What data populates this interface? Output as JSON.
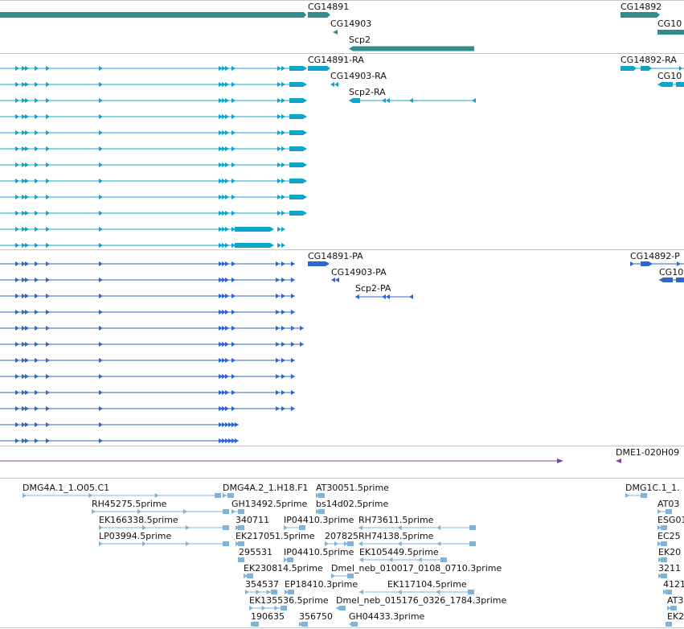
{
  "colors": {
    "gene": "#318c8c",
    "transcript": "#0ca5c9",
    "protein": "#2d66cf",
    "repeat": "#7b48a8",
    "est": "#7db4d8",
    "separator": "#c6c6c6"
  },
  "tracks": {
    "genes": {
      "labels": [
        "CG14891",
        "CG14903",
        "Scp2",
        "CG14892",
        "CG10"
      ]
    },
    "transcripts": {
      "labels": [
        "CG14891-RA",
        "CG14903-RA",
        "Scp2-RA",
        "CG14892-RA",
        "CG10"
      ]
    },
    "proteins": {
      "labels": [
        "CG14891-PA",
        "CG14903-PA",
        "Scp2-PA",
        "CG14892-P",
        "CG10"
      ]
    },
    "repeats": {
      "labels": [
        "DME1-020H09"
      ]
    },
    "ests": {
      "labels": [
        "DMG4A.1_1.O05.C1",
        "DMG4A.2_1.H18.F1",
        "AT30051.5prime",
        "DMG1C.1_1.",
        "RH45275.5prime",
        "GH13492.5prime",
        "bs14d02.5prime",
        "AT03",
        "EK166338.5prime",
        "340711",
        "IP04410.3prime",
        "RH73611.5prime",
        "ESG01",
        "LP03994.5prime",
        "EK21705",
        "1.5prime",
        "207825",
        "RH74138.5prime",
        "EC25",
        "295531",
        "IP04410.5prime",
        "EK105449.5prime",
        "EK20",
        "EK230814.5prime",
        "Dmel_neb_010017_0108_0710.3prime",
        "3211",
        "354537",
        "EP18410.3prime",
        "EK117104.5prime",
        "4121",
        "EK135536.5prime",
        "Dmel_neb_015176_0326_1784.3prime",
        "AT3",
        "190635",
        "356750",
        "GH04433.3prime",
        "EK2"
      ]
    }
  }
}
